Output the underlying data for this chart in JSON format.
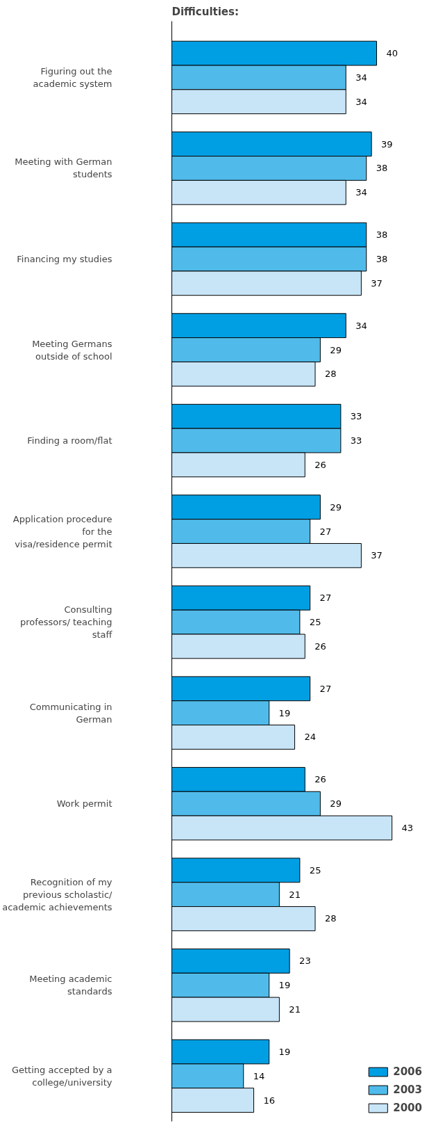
{
  "chart_data": {
    "type": "bar",
    "orientation": "horizontal",
    "title": "Difficulties:",
    "categories": [
      "Figuring out the academic system",
      "Meeting with German students",
      "Financing my studies",
      "Meeting Germans outside of school",
      "Finding a room/flat",
      "Application procedure for the visa/residence permit",
      "Consulting professors/ teaching staff",
      "Communicating in German",
      "Work permit",
      "Recognition of my previous scholastic/ academic achievements",
      "Meeting academic standards",
      "Getting accepted by a college/university"
    ],
    "series": [
      {
        "name": "2006",
        "color": "#009fe3",
        "values": [
          40,
          39,
          38,
          34,
          33,
          29,
          27,
          27,
          26,
          25,
          23,
          19
        ]
      },
      {
        "name": "2003",
        "color": "#50bbea",
        "values": [
          34,
          38,
          38,
          29,
          33,
          27,
          25,
          19,
          29,
          21,
          19,
          14
        ]
      },
      {
        "name": "2000",
        "color": "#c8e5f8",
        "values": [
          34,
          34,
          37,
          28,
          26,
          37,
          26,
          24,
          43,
          28,
          21,
          16
        ]
      }
    ],
    "data_labels": true,
    "legend": "bottom right",
    "grid": false
  }
}
